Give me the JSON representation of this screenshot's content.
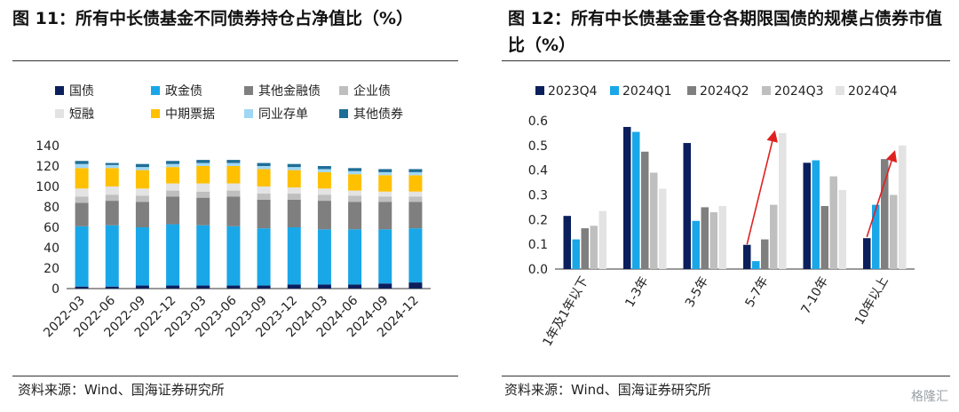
{
  "titles": {
    "left": "图 11：所有中长债基金不同债券持仓占净值比（%）",
    "right": "图 12：所有中长债基金重仓各期限国债的规模占债券市值比（%）"
  },
  "sources": {
    "left": "资料来源：Wind、国海证券研究所",
    "right": "资料来源：Wind、国海证券研究所"
  },
  "watermark": "格隆汇",
  "chart_data": [
    {
      "type": "bar",
      "stacked": true,
      "categories": [
        "2022-03",
        "2022-06",
        "2022-09",
        "2022-12",
        "2023-03",
        "2023-06",
        "2023-09",
        "2023-12",
        "2024-03",
        "2024-06",
        "2024-09",
        "2024-12"
      ],
      "ylim": [
        0,
        140
      ],
      "yticks": [
        0,
        20,
        40,
        60,
        80,
        100,
        120,
        140
      ],
      "legend_position": "top",
      "series": [
        {
          "name": "国债",
          "color": "#0b1f5c",
          "values": [
            2,
            2,
            3,
            3,
            3,
            3,
            3,
            4,
            4,
            4,
            5,
            6
          ]
        },
        {
          "name": "政金债",
          "color": "#1aa7e8",
          "values": [
            59,
            60,
            57,
            60,
            59,
            58,
            56,
            56,
            54,
            54,
            53,
            53
          ]
        },
        {
          "name": "其他金融债",
          "color": "#7f7f7f",
          "values": [
            23,
            24,
            25,
            27,
            27,
            29,
            28,
            27,
            28,
            27,
            27,
            26
          ]
        },
        {
          "name": "企业债",
          "color": "#bfbfbf",
          "values": [
            6,
            6,
            6,
            6,
            6,
            6,
            6,
            6,
            6,
            6,
            5,
            5
          ]
        },
        {
          "name": "短融",
          "color": "#e3e3e3",
          "values": [
            8,
            8,
            7,
            7,
            8,
            7,
            7,
            6,
            6,
            5,
            5,
            5
          ]
        },
        {
          "name": "中期票据",
          "color": "#ffc000",
          "values": [
            20,
            18,
            18,
            16,
            17,
            17,
            17,
            17,
            16,
            16,
            16,
            16
          ]
        },
        {
          "name": "同业存单",
          "color": "#9fd7f5",
          "values": [
            4,
            3,
            3,
            3,
            3,
            3,
            3,
            3,
            3,
            3,
            3,
            3
          ]
        },
        {
          "name": "其他债券",
          "color": "#1f6e96",
          "values": [
            3,
            2,
            3,
            3,
            3,
            3,
            3,
            3,
            3,
            3,
            3,
            3
          ]
        }
      ]
    },
    {
      "type": "bar",
      "categories": [
        "1年及1年以下",
        "1-3年",
        "3-5年",
        "5-7年",
        "7-10年",
        "10年以上"
      ],
      "ylim": [
        0,
        0.6
      ],
      "yticks": [
        0,
        0.1,
        0.2,
        0.3,
        0.4,
        0.5,
        0.6
      ],
      "legend_position": "top",
      "series": [
        {
          "name": "2023Q4",
          "color": "#0b1f5c",
          "values": [
            0.215,
            0.575,
            0.51,
            0.098,
            0.43,
            0.125
          ]
        },
        {
          "name": "2024Q1",
          "color": "#1aa7e8",
          "values": [
            0.12,
            0.555,
            0.195,
            0.032,
            0.44,
            0.26
          ]
        },
        {
          "name": "2024Q2",
          "color": "#7f7f7f",
          "values": [
            0.165,
            0.475,
            0.25,
            0.12,
            0.255,
            0.445
          ]
        },
        {
          "name": "2024Q3",
          "color": "#bfbfbf",
          "values": [
            0.175,
            0.39,
            0.23,
            0.26,
            0.375,
            0.3
          ]
        },
        {
          "name": "2024Q4",
          "color": "#e3e3e3",
          "values": [
            0.235,
            0.325,
            0.255,
            0.55,
            0.32,
            0.5
          ]
        }
      ],
      "annotations": [
        {
          "type": "arrow",
          "color": "#e02020",
          "from": {
            "category": "5-7年",
            "value": 0.1
          },
          "to": {
            "category": "5-7年",
            "value": 0.55
          }
        },
        {
          "type": "arrow",
          "color": "#e02020",
          "from": {
            "category": "10年以上",
            "value": 0.13
          },
          "to": {
            "category": "10年以上",
            "value": 0.47
          }
        }
      ]
    }
  ]
}
